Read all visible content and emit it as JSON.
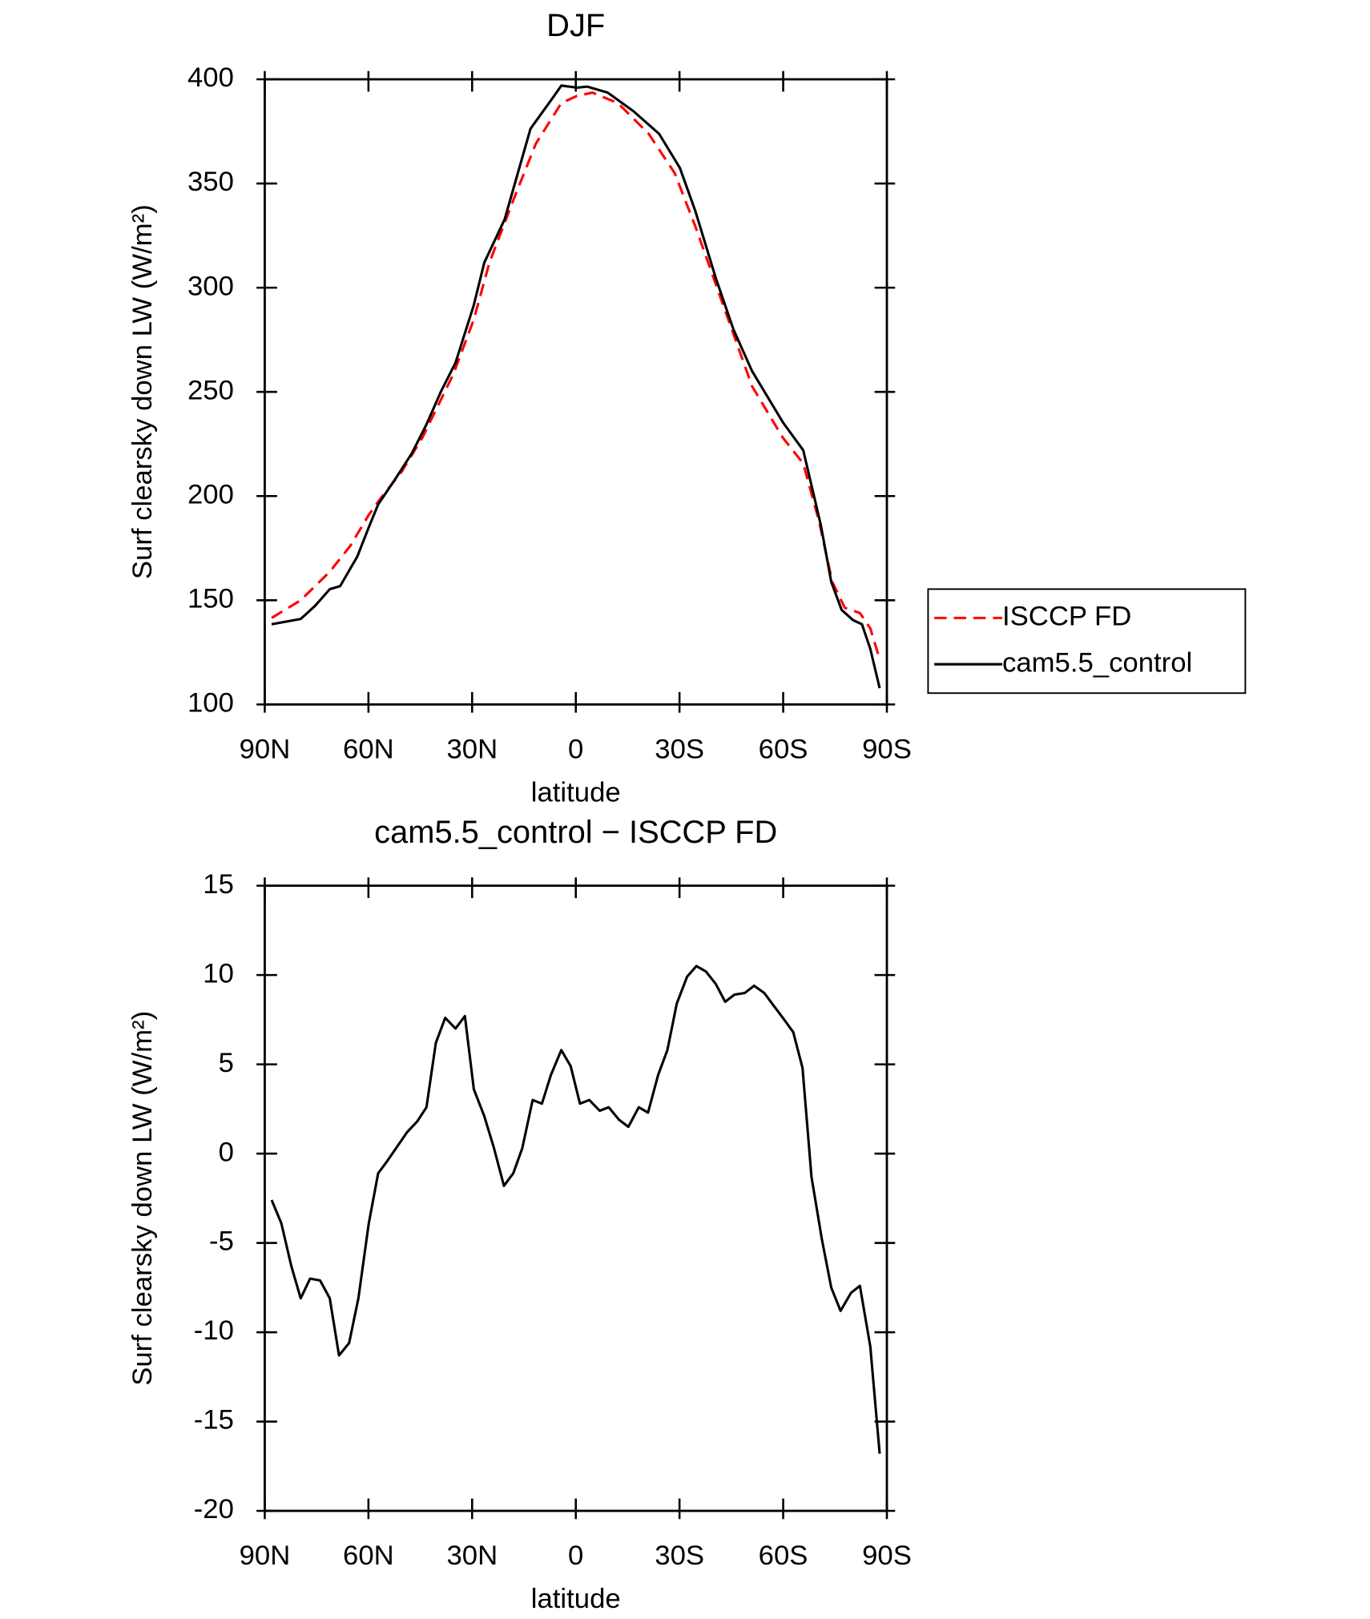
{
  "chart_data": [
    {
      "type": "line",
      "title": "DJF",
      "x_label": "latitude",
      "y_label": "Surf clearsky down LW (W/m²)",
      "xlim": [
        90,
        -90
      ],
      "xticks": [
        {
          "value": 90,
          "label": "90N"
        },
        {
          "value": 60,
          "label": "60N"
        },
        {
          "value": 30,
          "label": "30N"
        },
        0,
        {
          "value": -30,
          "label": "30S"
        },
        {
          "value": -60,
          "label": "60S"
        },
        {
          "value": -90,
          "label": "90S"
        }
      ],
      "ylim": [
        100,
        400
      ],
      "yticks": [
        100,
        150,
        200,
        250,
        300,
        350,
        400
      ],
      "legend": "right",
      "series": [
        {
          "name": "ISCCP FD",
          "color": "#ff0000",
          "dash": true,
          "x": [
            88,
            79.6,
            71.2,
            65.3,
            59.9,
            56.3,
            50.4,
            44.4,
            35.4,
            29.5,
            25,
            17.6,
            11.6,
            4.2,
            -0.3,
            -4.8,
            -12.2,
            -21.1,
            -28.6,
            -34.6,
            -42,
            -51,
            -59.9,
            -65.8,
            -70.3,
            -74.2,
            -77.8,
            -82.2,
            -85.2,
            -87.9
          ],
          "values": [
            141.5,
            150,
            163.7,
            176,
            191,
            199.3,
            211.7,
            228,
            258.6,
            284.8,
            312,
            344,
            369,
            388.6,
            392,
            393.6,
            388.6,
            373.8,
            355,
            329.3,
            294.7,
            252.7,
            228,
            215.6,
            188.4,
            158.8,
            146.4,
            143.9,
            136.5,
            121.7
          ]
        },
        {
          "name": "cam5.5_control",
          "color": "#000000",
          "dash": false,
          "x": [
            88,
            79.6,
            75.4,
            71.2,
            68.2,
            63.2,
            59.9,
            57.2,
            51.9,
            47.4,
            43.2,
            39,
            34.8,
            29.5,
            26.5,
            20.6,
            13.1,
            6.3,
            4.2,
            -0.3,
            -3.3,
            -9.2,
            -16.7,
            -24.1,
            -30.1,
            -34.6,
            -40.5,
            -45.6,
            -51,
            -59.9,
            -65.8,
            -70.9,
            -73.9,
            -76.9,
            -80.2,
            -82.8,
            -85.2,
            -87.9
          ],
          "values": [
            138.5,
            141,
            147.4,
            155.3,
            156.8,
            171,
            185,
            196,
            209,
            220.6,
            234.4,
            250.2,
            264,
            291.7,
            312,
            332.8,
            376.3,
            392,
            397,
            396,
            396.5,
            393.6,
            384.7,
            373.8,
            357.5,
            336.7,
            304.6,
            280,
            260,
            235.4,
            222,
            186,
            158.8,
            145.4,
            140.5,
            138.5,
            126.7,
            107.8
          ]
        }
      ]
    },
    {
      "type": "line",
      "title": "cam5.5_control − ISCCP FD",
      "x_label": "latitude",
      "y_label": "Surf clearsky down LW (W/m²)",
      "xlim": [
        90,
        -90
      ],
      "xticks": [
        {
          "value": 90,
          "label": "90N"
        },
        {
          "value": 60,
          "label": "60N"
        },
        {
          "value": 30,
          "label": "30N"
        },
        0,
        {
          "value": -30,
          "label": "30S"
        },
        {
          "value": -60,
          "label": "60S"
        },
        {
          "value": -90,
          "label": "90S"
        }
      ],
      "ylim": [
        -20,
        15
      ],
      "yticks": [
        -20,
        -15,
        -10,
        -5,
        0,
        5,
        10,
        15
      ],
      "color": "#000000",
      "x": [
        88,
        85.2,
        82.3,
        79.6,
        76.9,
        74,
        71.2,
        68.5,
        65.6,
        62.9,
        59.9,
        57.2,
        54.5,
        48.8,
        45.9,
        43.2,
        40.5,
        37.8,
        34.8,
        32.1,
        29.5,
        26.5,
        23.8,
        20.8,
        18.1,
        15.5,
        12.5,
        9.8,
        7.2,
        4.2,
        1.5,
        -1.2,
        -3.9,
        -6.9,
        -9.5,
        -12.5,
        -15.2,
        -18.2,
        -20.9,
        -23.8,
        -26.5,
        -29.2,
        -32.2,
        -34.9,
        -37.6,
        -40.5,
        -43.2,
        -45.9,
        -48.9,
        -51.6,
        -54.5,
        -57.2,
        -59.9,
        -62.9,
        -65.6,
        -68.2,
        -71.2,
        -73.9,
        -76.6,
        -79.6,
        -82.2,
        -85.2,
        -87.9
      ],
      "values": [
        -2.6,
        -3.9,
        -6.3,
        -8.1,
        -7,
        -7.1,
        -8.1,
        -11.3,
        -10.6,
        -8.1,
        -3.9,
        -1.1,
        -0.4,
        1.2,
        1.8,
        2.6,
        6.2,
        7.6,
        7,
        7.7,
        3.6,
        2.1,
        0.4,
        -1.8,
        -1.1,
        0.3,
        3,
        2.8,
        4.4,
        5.8,
        4.9,
        2.8,
        3,
        2.4,
        2.6,
        1.9,
        1.5,
        2.6,
        2.3,
        4.4,
        5.8,
        8.4,
        9.9,
        10.5,
        10.2,
        9.5,
        8.5,
        8.9,
        9,
        9.4,
        9,
        8.3,
        7.6,
        6.8,
        4.8,
        -1.3,
        -4.8,
        -7.5,
        -8.8,
        -7.8,
        -7.4,
        -10.8,
        -16.8
      ]
    }
  ]
}
